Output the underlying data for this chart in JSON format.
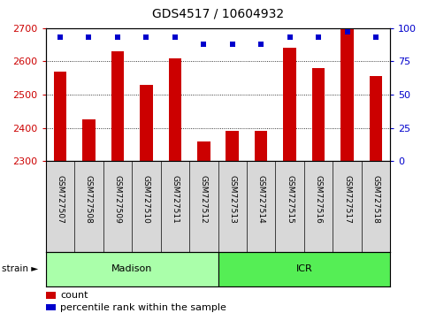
{
  "title": "GDS4517 / 10604932",
  "samples": [
    "GSM727507",
    "GSM727508",
    "GSM727509",
    "GSM727510",
    "GSM727511",
    "GSM727512",
    "GSM727513",
    "GSM727514",
    "GSM727515",
    "GSM727516",
    "GSM727517",
    "GSM727518"
  ],
  "counts": [
    2570,
    2425,
    2630,
    2530,
    2610,
    2360,
    2390,
    2390,
    2640,
    2580,
    2700,
    2555
  ],
  "percentiles": [
    93,
    93,
    93,
    93,
    93,
    88,
    88,
    88,
    93,
    93,
    97,
    93
  ],
  "ylim_left": [
    2300,
    2700
  ],
  "ylim_right": [
    0,
    100
  ],
  "yticks_left": [
    2300,
    2400,
    2500,
    2600,
    2700
  ],
  "yticks_right": [
    0,
    25,
    50,
    75,
    100
  ],
  "bar_color": "#cc0000",
  "dot_color": "#0000cc",
  "bar_bottom": 2300,
  "strain_groups": [
    {
      "label": "Madison",
      "start": 0,
      "end": 6,
      "color": "#aaffaa"
    },
    {
      "label": "ICR",
      "start": 6,
      "end": 12,
      "color": "#55ee55"
    }
  ],
  "strain_label": "strain ►",
  "legend_count_label": "count",
  "legend_pct_label": "percentile rank within the sample",
  "plot_bg_color": "#ffffff",
  "tick_label_color_left": "#cc0000",
  "tick_label_color_right": "#0000cc",
  "xlabel_bg_color": "#d8d8d8",
  "title_fontsize": 10,
  "bar_width": 0.45
}
